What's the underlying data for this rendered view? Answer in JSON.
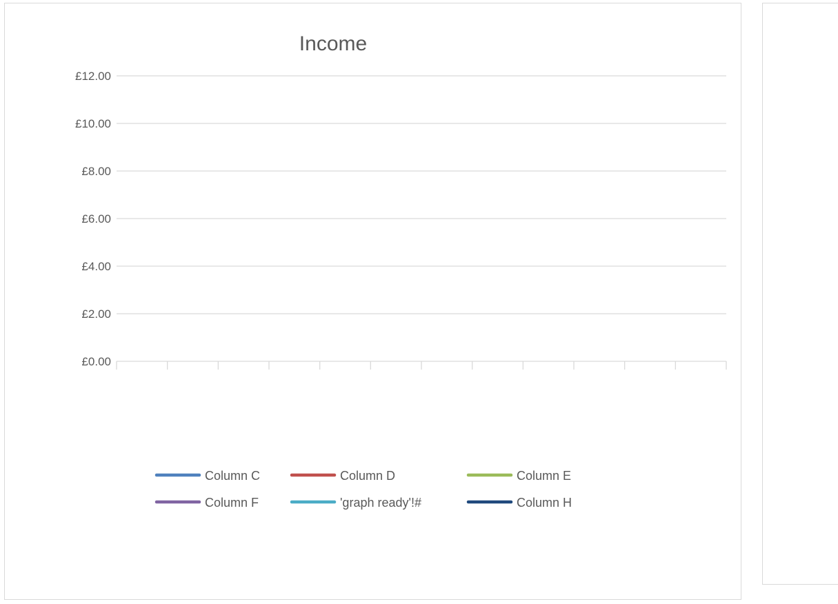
{
  "chart_data": {
    "type": "line",
    "title": "Income",
    "xlabel": "",
    "ylabel": "",
    "y_ticks": [
      "£0.00",
      "£2.00",
      "£4.00",
      "£6.00",
      "£8.00",
      "£10.00",
      "£12.00"
    ],
    "ylim": [
      0,
      12
    ],
    "x_tick_count": 12,
    "grid": true,
    "legend_position": "bottom",
    "series": [
      {
        "name": "Column C",
        "color": "#4f81bd",
        "values": []
      },
      {
        "name": "Column D",
        "color": "#c0504d",
        "values": []
      },
      {
        "name": "Column E",
        "color": "#9bbb59",
        "values": []
      },
      {
        "name": "Column F",
        "color": "#8064a2",
        "values": []
      },
      {
        "name": "'graph ready'!#",
        "color": "#4bacc6",
        "values": []
      },
      {
        "name": "Column H",
        "color": "#1f497d",
        "values": []
      }
    ]
  }
}
